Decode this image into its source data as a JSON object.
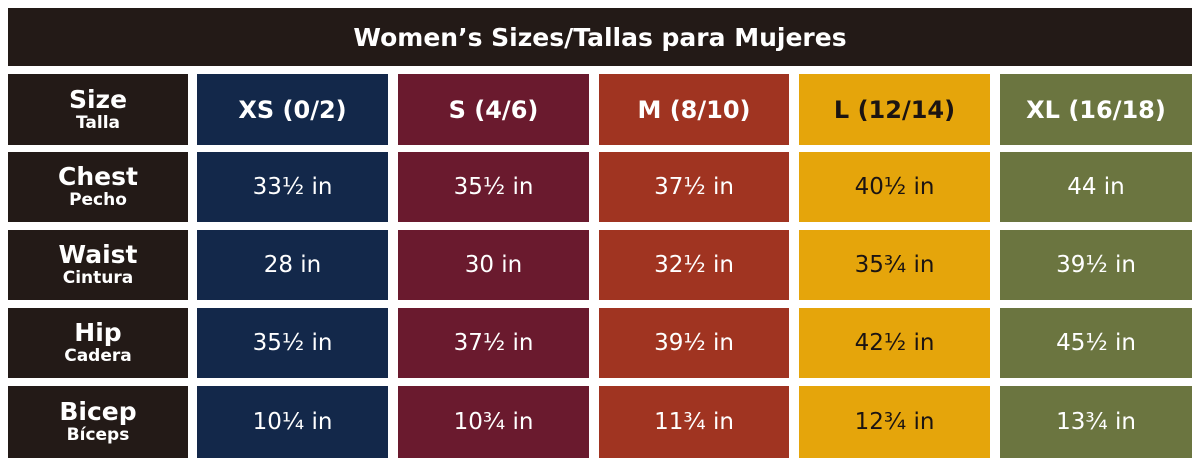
{
  "header": {
    "title": "Women’s Sizes/Tallas para Mujeres"
  },
  "table": {
    "corner": {
      "name": "Size",
      "sub": "Talla"
    },
    "columns": [
      "XS (0/2)",
      "S (4/6)",
      "M (8/10)",
      "L (12/14)",
      "XL (16/18)"
    ],
    "rows": [
      {
        "name": "Chest",
        "sub": "Pecho",
        "cells": [
          "33½ in",
          "35½ in",
          "37½ in",
          "40½ in",
          "44 in"
        ]
      },
      {
        "name": "Waist",
        "sub": "Cintura",
        "cells": [
          "28 in",
          "30 in",
          "32½ in",
          "35¾ in",
          "39½ in"
        ]
      },
      {
        "name": "Hip",
        "sub": "Cadera",
        "cells": [
          "35½ in",
          "37½ in",
          "39½ in",
          "42½ in",
          "45½ in"
        ]
      },
      {
        "name": "Bicep",
        "sub": "Bíceps",
        "cells": [
          "10¼ in",
          "10¾ in",
          "11¾ in",
          "12¾ in",
          "13¾ in"
        ]
      }
    ]
  }
}
